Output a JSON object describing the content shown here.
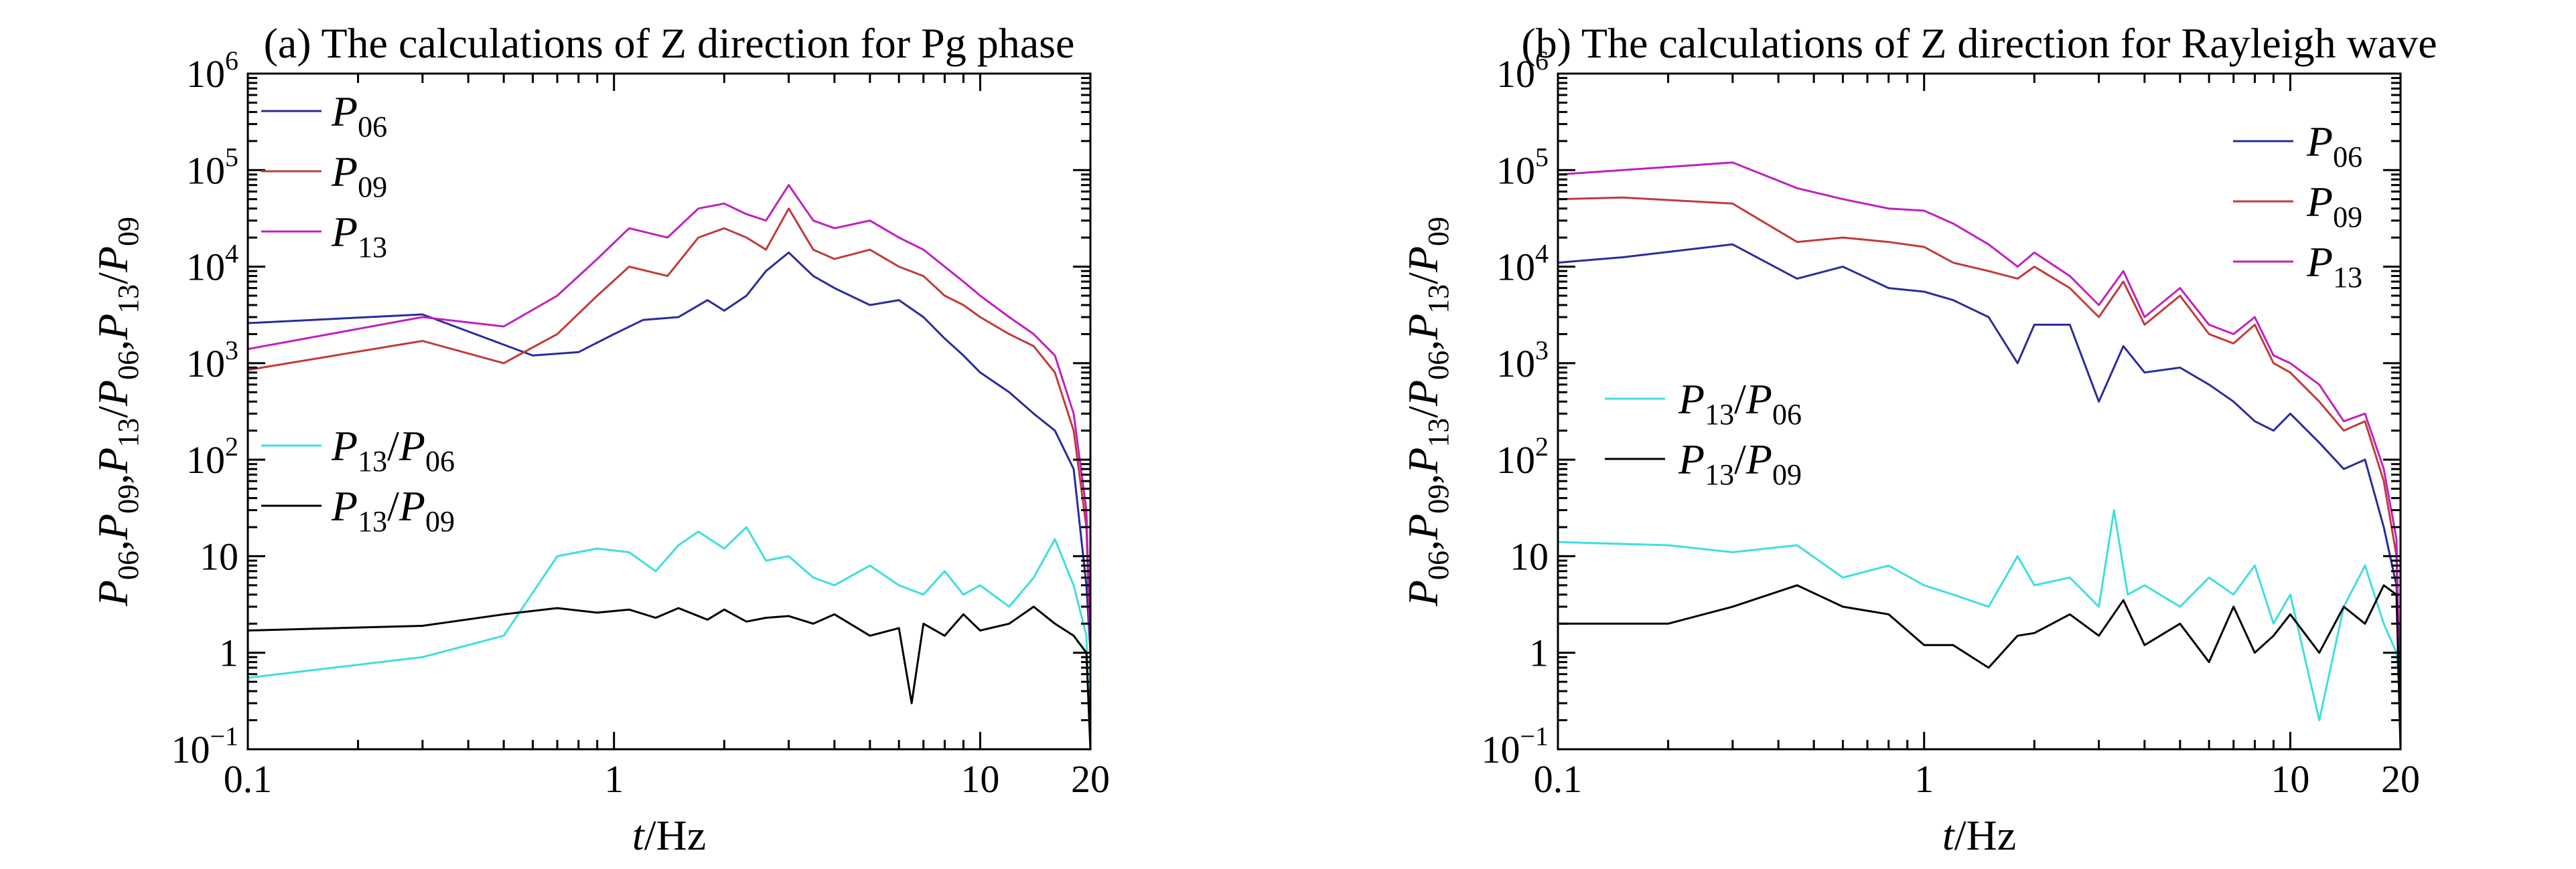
{
  "chart_data": [
    {
      "type": "line",
      "title": "(a) The calculations of Z direction for Pg phase",
      "xlabel_italic": "t",
      "xlabel_unit": "/Hz",
      "ylabel": "P06,P09,P13/P06,P13/P09",
      "xscale": "log",
      "yscale": "log",
      "xlim": [
        0.1,
        20
      ],
      "ylim": [
        0.1,
        1000000
      ],
      "xticks": [
        {
          "v": 0.1,
          "label": "0.1"
        },
        {
          "v": 1,
          "label": "1"
        },
        {
          "v": 10,
          "label": "10"
        },
        {
          "v": 20,
          "label": "20"
        }
      ],
      "yticks": [
        {
          "v": 0.1,
          "base": "10",
          "exp": "−1"
        },
        {
          "v": 1,
          "base": "1",
          "exp": ""
        },
        {
          "v": 10,
          "base": "10",
          "exp": ""
        },
        {
          "v": 100,
          "base": "10",
          "exp": "2"
        },
        {
          "v": 1000,
          "base": "10",
          "exp": "3"
        },
        {
          "v": 10000,
          "base": "10",
          "exp": "4"
        },
        {
          "v": 100000,
          "base": "10",
          "exp": "5"
        },
        {
          "v": 1000000,
          "base": "10",
          "exp": "6"
        }
      ],
      "legend_position": "top-left",
      "series": [
        {
          "name": "P06",
          "num": "P",
          "num_sub": "06",
          "den": "",
          "den_sub": "",
          "color": "#2b2b9c",
          "x": [
            0.1,
            0.3,
            0.6,
            0.8,
            1.0,
            1.2,
            1.5,
            1.8,
            2.0,
            2.3,
            2.6,
            3.0,
            3.5,
            4.0,
            5.0,
            6.0,
            7.0,
            8.0,
            9.0,
            10.0,
            12.0,
            14.0,
            16.0,
            18.0,
            19.5,
            20.0
          ],
          "y": [
            2600,
            3200,
            1200,
            1300,
            2000,
            2800,
            3000,
            4500,
            3500,
            5000,
            9000,
            14000,
            8000,
            6000,
            4000,
            4500,
            3000,
            1800,
            1200,
            800,
            500,
            300,
            200,
            80,
            5,
            1
          ]
        },
        {
          "name": "P09",
          "num": "P",
          "num_sub": "09",
          "den": "",
          "den_sub": "",
          "color": "#c23a3a",
          "x": [
            0.1,
            0.3,
            0.5,
            0.7,
            0.9,
            1.1,
            1.4,
            1.7,
            2.0,
            2.3,
            2.6,
            3.0,
            3.5,
            4.0,
            5.0,
            6.0,
            7.0,
            8.0,
            9.0,
            10.0,
            12.0,
            14.0,
            16.0,
            18.0,
            19.5,
            20.0
          ],
          "y": [
            850,
            1700,
            1000,
            2000,
            5000,
            10000,
            8000,
            20000,
            25000,
            20000,
            15000,
            40000,
            15000,
            12000,
            15000,
            10000,
            8000,
            5000,
            4000,
            3000,
            2000,
            1500,
            800,
            200,
            20,
            1
          ]
        },
        {
          "name": "P13",
          "num": "P",
          "num_sub": "13",
          "den": "",
          "den_sub": "",
          "color": "#c020c0",
          "x": [
            0.1,
            0.3,
            0.5,
            0.7,
            0.9,
            1.1,
            1.4,
            1.7,
            2.0,
            2.3,
            2.6,
            3.0,
            3.5,
            4.0,
            5.0,
            6.0,
            7.0,
            8.0,
            9.0,
            10.0,
            12.0,
            14.0,
            16.0,
            18.0,
            19.5,
            20.0
          ],
          "y": [
            1400,
            3000,
            2400,
            5000,
            12000,
            25000,
            20000,
            40000,
            45000,
            35000,
            30000,
            70000,
            30000,
            25000,
            30000,
            20000,
            15000,
            10000,
            7000,
            5000,
            3000,
            2000,
            1200,
            300,
            30,
            1
          ]
        },
        {
          "name": "P13/P06",
          "num": "P",
          "num_sub": "13",
          "den": "P",
          "den_sub": "06",
          "color": "#40dede",
          "x": [
            0.1,
            0.3,
            0.5,
            0.7,
            0.9,
            1.1,
            1.3,
            1.5,
            1.7,
            2.0,
            2.3,
            2.6,
            3.0,
            3.5,
            4.0,
            5.0,
            6.0,
            7.0,
            8.0,
            9.0,
            10.0,
            12.0,
            14.0,
            16.0,
            18.0,
            19.5,
            20.0
          ],
          "y": [
            0.55,
            0.9,
            1.5,
            10,
            12,
            11,
            7,
            13,
            18,
            12,
            20,
            9,
            10,
            6,
            5,
            8,
            5,
            4,
            7,
            4,
            5,
            3,
            6,
            15,
            5,
            1.5,
            0.1
          ]
        },
        {
          "name": "P13/P09",
          "num": "P",
          "num_sub": "13",
          "den": "P",
          "den_sub": "09",
          "color": "#000000",
          "x": [
            0.1,
            0.3,
            0.5,
            0.7,
            0.9,
            1.1,
            1.3,
            1.5,
            1.8,
            2.0,
            2.3,
            2.6,
            3.0,
            3.5,
            4.0,
            5.0,
            6.0,
            6.5,
            7.0,
            8.0,
            9.0,
            10.0,
            12.0,
            14.0,
            16.0,
            18.0,
            19.5,
            20.0
          ],
          "y": [
            1.7,
            1.9,
            2.5,
            2.9,
            2.6,
            2.8,
            2.3,
            2.9,
            2.2,
            2.8,
            2.1,
            2.3,
            2.4,
            2.0,
            2.5,
            1.5,
            1.8,
            0.3,
            2.0,
            1.5,
            2.5,
            1.7,
            2.0,
            3.0,
            2.0,
            1.5,
            1.0,
            0.1
          ]
        }
      ]
    },
    {
      "type": "line",
      "title": "(b) The calculations of Z direction for Rayleigh wave",
      "xlabel_italic": "t",
      "xlabel_unit": "/Hz",
      "ylabel": "P06,P09,P13/P06,P13/P09",
      "xscale": "log",
      "yscale": "log",
      "xlim": [
        0.1,
        20
      ],
      "ylim": [
        0.1,
        1000000
      ],
      "xticks": [
        {
          "v": 0.1,
          "label": "0.1"
        },
        {
          "v": 1,
          "label": "1"
        },
        {
          "v": 10,
          "label": "10"
        },
        {
          "v": 20,
          "label": "20"
        }
      ],
      "yticks": [
        {
          "v": 0.1,
          "base": "10",
          "exp": "−1"
        },
        {
          "v": 1,
          "base": "1",
          "exp": ""
        },
        {
          "v": 10,
          "base": "10",
          "exp": ""
        },
        {
          "v": 100,
          "base": "10",
          "exp": "2"
        },
        {
          "v": 1000,
          "base": "10",
          "exp": "3"
        },
        {
          "v": 10000,
          "base": "10",
          "exp": "4"
        },
        {
          "v": 100000,
          "base": "10",
          "exp": "5"
        },
        {
          "v": 1000000,
          "base": "10",
          "exp": "6"
        }
      ],
      "legend_position": "top-right",
      "series": [
        {
          "name": "P06",
          "num": "P",
          "num_sub": "06",
          "den": "",
          "den_sub": "",
          "color": "#2b2b9c",
          "x": [
            0.1,
            0.15,
            0.3,
            0.45,
            0.6,
            0.8,
            1.0,
            1.2,
            1.5,
            1.8,
            2.0,
            2.5,
            3.0,
            3.5,
            4.0,
            5.0,
            6.0,
            7.0,
            8.0,
            9.0,
            10.0,
            12.0,
            14.0,
            16.0,
            18.0,
            19.5,
            20.0
          ],
          "y": [
            11000,
            12500,
            17000,
            7500,
            10000,
            6000,
            5500,
            4500,
            3000,
            1000,
            2500,
            2500,
            400,
            1500,
            800,
            900,
            600,
            400,
            250,
            200,
            300,
            150,
            80,
            100,
            20,
            5,
            0.5
          ]
        },
        {
          "name": "P09",
          "num": "P",
          "num_sub": "09",
          "den": "",
          "den_sub": "",
          "color": "#c23a3a",
          "x": [
            0.1,
            0.15,
            0.3,
            0.45,
            0.6,
            0.8,
            1.0,
            1.2,
            1.5,
            1.8,
            2.0,
            2.5,
            3.0,
            3.5,
            4.0,
            5.0,
            6.0,
            7.0,
            8.0,
            9.0,
            10.0,
            12.0,
            14.0,
            16.0,
            18.0,
            19.5,
            20.0
          ],
          "y": [
            50000,
            52000,
            45000,
            18000,
            20000,
            18000,
            16000,
            11000,
            9000,
            7500,
            10000,
            6000,
            3000,
            7000,
            2500,
            5000,
            2000,
            1600,
            2500,
            1000,
            800,
            400,
            200,
            250,
            60,
            10,
            0.2
          ]
        },
        {
          "name": "P13",
          "num": "P",
          "num_sub": "13",
          "den": "",
          "den_sub": "",
          "color": "#c020c0",
          "x": [
            0.1,
            0.15,
            0.3,
            0.45,
            0.6,
            0.8,
            1.0,
            1.2,
            1.5,
            1.8,
            2.0,
            2.5,
            3.0,
            3.5,
            4.0,
            5.0,
            6.0,
            7.0,
            8.0,
            9.0,
            10.0,
            12.0,
            14.0,
            16.0,
            18.0,
            19.5,
            20.0
          ],
          "y": [
            90000,
            100000,
            120000,
            65000,
            50000,
            40000,
            38000,
            28000,
            17000,
            10000,
            14000,
            8000,
            4000,
            9000,
            3000,
            6000,
            2500,
            2000,
            3000,
            1200,
            1000,
            600,
            250,
            300,
            80,
            15,
            0.2
          ]
        },
        {
          "name": "P13/P06",
          "num": "P",
          "num_sub": "13",
          "den": "P",
          "den_sub": "06",
          "color": "#40dede",
          "x": [
            0.1,
            0.2,
            0.3,
            0.45,
            0.6,
            0.8,
            1.0,
            1.2,
            1.5,
            1.8,
            2.0,
            2.5,
            3.0,
            3.3,
            3.6,
            4.0,
            5.0,
            6.0,
            7.0,
            8.0,
            9.0,
            10.0,
            12.0,
            14.0,
            16.0,
            18.0,
            19.5,
            20.0
          ],
          "y": [
            14,
            13,
            11,
            13,
            6,
            8,
            5,
            4,
            3,
            10,
            5,
            6,
            3,
            30,
            4,
            5,
            3,
            6,
            4,
            8,
            2,
            4,
            0.2,
            3,
            8,
            2,
            1,
            0.3
          ]
        },
        {
          "name": "P13/P09",
          "num": "P",
          "num_sub": "13",
          "den": "P",
          "den_sub": "09",
          "color": "#000000",
          "x": [
            0.1,
            0.2,
            0.3,
            0.45,
            0.6,
            0.8,
            1.0,
            1.2,
            1.5,
            1.8,
            2.0,
            2.5,
            3.0,
            3.5,
            4.0,
            5.0,
            6.0,
            7.0,
            8.0,
            9.0,
            10.0,
            12.0,
            14.0,
            16.0,
            18.0,
            19.5,
            20.0
          ],
          "y": [
            2,
            2,
            3,
            5,
            3,
            2.5,
            1.2,
            1.2,
            0.7,
            1.5,
            1.6,
            2.5,
            1.5,
            3.5,
            1.2,
            2.0,
            0.8,
            3.0,
            1.0,
            1.5,
            2.5,
            1.0,
            3.0,
            2.0,
            5.0,
            4.0,
            0.1
          ]
        }
      ]
    }
  ]
}
